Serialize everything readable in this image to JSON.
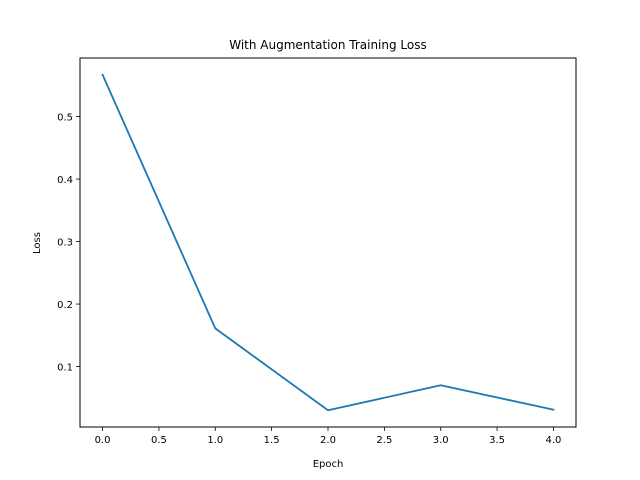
{
  "chart_data": {
    "type": "line",
    "title": "With Augmentation Training Loss",
    "xlabel": "Epoch",
    "ylabel": "Loss",
    "x": [
      0,
      1,
      2,
      3,
      4
    ],
    "series": [
      {
        "values": [
          0.567,
          0.161,
          0.03,
          0.07,
          0.031
        ]
      }
    ],
    "xlim": [
      -0.2,
      4.2
    ],
    "ylim": [
      0.0032,
      0.5938
    ],
    "xticks": [
      0.0,
      0.5,
      1.0,
      1.5,
      2.0,
      2.5,
      3.0,
      3.5,
      4.0
    ],
    "xtick_labels": [
      "0.0",
      "0.5",
      "1.0",
      "1.5",
      "2.0",
      "2.5",
      "3.0",
      "3.5",
      "4.0"
    ],
    "yticks": [
      0.1,
      0.2,
      0.3,
      0.4,
      0.5
    ],
    "ytick_labels": [
      "0.1",
      "0.2",
      "0.3",
      "0.4",
      "0.5"
    ],
    "grid": false,
    "legend": false,
    "line_color": "#1f77b4"
  }
}
